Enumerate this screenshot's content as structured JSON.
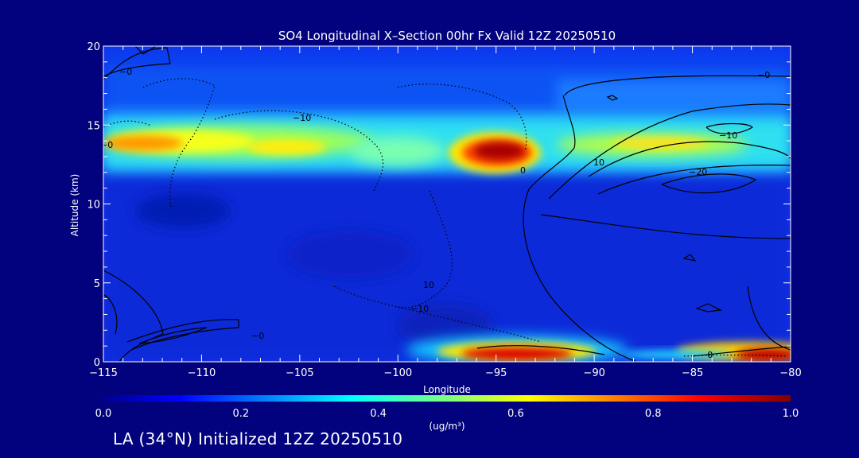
{
  "chart_data": {
    "type": "heatmap",
    "title": "SO4 Longitudinal X–Section 00hr  Fx Valid 12Z 20250510",
    "xlabel": "Longitude",
    "ylabel": "Altitude (km)",
    "xlim": [
      -115,
      -80
    ],
    "ylim": [
      0,
      20
    ],
    "x_ticks": [
      -115,
      -110,
      -105,
      -100,
      -95,
      -90,
      -85,
      -80
    ],
    "x_tick_labels": [
      "−115",
      "−110",
      "−105",
      "−100",
      "−95",
      "−90",
      "−85",
      "−80"
    ],
    "y_ticks": [
      0,
      5,
      10,
      15,
      20
    ],
    "y_tick_labels": [
      "0",
      "5",
      "10",
      "15",
      "20"
    ],
    "colorbar": {
      "min": 0.0,
      "max": 1.0,
      "ticks": [
        0.0,
        0.2,
        0.4,
        0.6,
        0.8,
        1.0
      ],
      "tick_labels": [
        "0.0",
        "0.2",
        "0.4",
        "0.6",
        "0.8",
        "1.0"
      ],
      "units": "(ug/m³)",
      "colormap": "jet"
    },
    "concentration_features": [
      {
        "lon_range": [
          -115,
          -80
        ],
        "alt_range": [
          12,
          15
        ],
        "approx_value": 0.45
      },
      {
        "lon_range": [
          -115,
          -113
        ],
        "alt_range": [
          13.3,
          14.2
        ],
        "approx_value": 0.75
      },
      {
        "lon_range": [
          -96.5,
          -93.5
        ],
        "alt_range": [
          12.8,
          14.2
        ],
        "approx_value": 0.95
      },
      {
        "lon_range": [
          -96,
          -91
        ],
        "alt_range": [
          0,
          1.2
        ],
        "approx_value": 0.9
      },
      {
        "lon_range": [
          -84,
          -80
        ],
        "alt_range": [
          0,
          1.2
        ],
        "approx_value": 0.85
      },
      {
        "lon_range": [
          -115,
          -80
        ],
        "alt_range": [
          0,
          11
        ],
        "approx_value": 0.1
      }
    ],
    "contour_labels": [
      "−0",
      "−10",
      "10",
      "0",
      "−10",
      "10",
      "−20",
      "−10",
      "−0",
      "−0",
      "−0",
      "−0"
    ]
  },
  "footer": "LA (34°N) Initialized 12Z 20250510"
}
